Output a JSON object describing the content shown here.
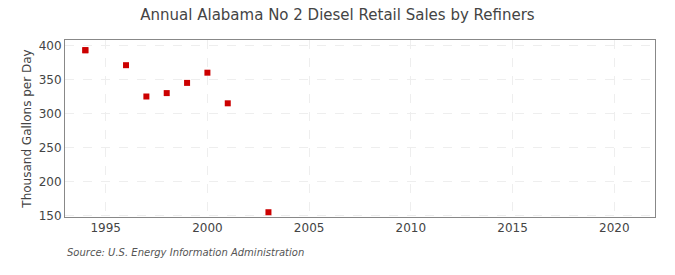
{
  "chart_data": {
    "type": "scatter",
    "title": "Annual Alabama No 2 Diesel Retail Sales by Refiners",
    "ylabel": "Thousand Gallons per Day",
    "annotations": [
      "Source: U.S. Energy Information Administration"
    ],
    "x": [
      1994,
      1994,
      1996,
      1997,
      1998,
      1999,
      2000,
      2001,
      2003
    ],
    "values": [
      393,
      393,
      371,
      325,
      330,
      345,
      360,
      315,
      155
    ],
    "color": "#cc0000",
    "marker": "square",
    "xlim": [
      1993,
      2022
    ],
    "ylim": [
      148,
      408
    ],
    "xticks": [
      1995,
      2000,
      2005,
      2010,
      2015,
      2020
    ],
    "yticks": [
      150,
      200,
      250,
      300,
      350,
      400
    ],
    "grid": true
  }
}
